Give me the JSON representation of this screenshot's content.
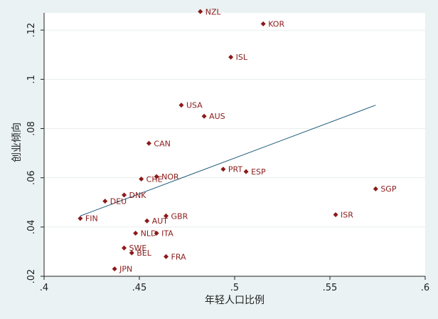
{
  "chart_data": {
    "type": "scatter",
    "title": "",
    "xlabel": "年轻人口比例",
    "ylabel": "创业倾向",
    "xlim": [
      0.4,
      0.6
    ],
    "ylim": [
      0.02,
      0.127
    ],
    "xticks": [
      {
        "value": 0.4,
        "label": ".4"
      },
      {
        "value": 0.45,
        "label": ".45"
      },
      {
        "value": 0.5,
        "label": ".5"
      },
      {
        "value": 0.55,
        "label": ".55"
      },
      {
        "value": 0.6,
        "label": ".6"
      }
    ],
    "yticks": [
      {
        "value": 0.02,
        "label": ".02"
      },
      {
        "value": 0.04,
        "label": ".04"
      },
      {
        "value": 0.06,
        "label": ".06"
      },
      {
        "value": 0.08,
        "label": ".08"
      },
      {
        "value": 0.1,
        "label": ".1"
      },
      {
        "value": 0.12,
        "label": ".12"
      }
    ],
    "grid": "horizontal",
    "background_color": "#eaf2f3",
    "plot_color": "#ffffff",
    "marker_color": "#8b1a1a",
    "line_color": "#1f5a7a",
    "points": [
      {
        "label": "NZL",
        "x": 0.482,
        "y": 0.1275
      },
      {
        "label": "KOR",
        "x": 0.515,
        "y": 0.1225
      },
      {
        "label": "ISL",
        "x": 0.498,
        "y": 0.109
      },
      {
        "label": "USA",
        "x": 0.472,
        "y": 0.0895
      },
      {
        "label": "AUS",
        "x": 0.484,
        "y": 0.085
      },
      {
        "label": "CAN",
        "x": 0.455,
        "y": 0.074
      },
      {
        "label": "PRT",
        "x": 0.494,
        "y": 0.0635
      },
      {
        "label": "ESP",
        "x": 0.506,
        "y": 0.0625
      },
      {
        "label": "NOR",
        "x": 0.459,
        "y": 0.0605
      },
      {
        "label": "CHE",
        "x": 0.451,
        "y": 0.0595
      },
      {
        "label": "SGP",
        "x": 0.574,
        "y": 0.0555
      },
      {
        "label": "DNK",
        "x": 0.442,
        "y": 0.053
      },
      {
        "label": "DEU",
        "x": 0.432,
        "y": 0.0505
      },
      {
        "label": "ISR",
        "x": 0.553,
        "y": 0.045
      },
      {
        "label": "GBR",
        "x": 0.464,
        "y": 0.0445
      },
      {
        "label": "FIN",
        "x": 0.419,
        "y": 0.0435
      },
      {
        "label": "AUT",
        "x": 0.454,
        "y": 0.0425
      },
      {
        "label": "NLD",
        "x": 0.448,
        "y": 0.0375
      },
      {
        "label": "ITA",
        "x": 0.459,
        "y": 0.0375
      },
      {
        "label": "SWE",
        "x": 0.442,
        "y": 0.0315
      },
      {
        "label": "BEL",
        "x": 0.446,
        "y": 0.0295
      },
      {
        "label": "FRA",
        "x": 0.464,
        "y": 0.028
      },
      {
        "label": "JPN",
        "x": 0.437,
        "y": 0.023
      }
    ],
    "fit_line": {
      "x": [
        0.419,
        0.574
      ],
      "y": [
        0.0445,
        0.0895
      ]
    }
  }
}
